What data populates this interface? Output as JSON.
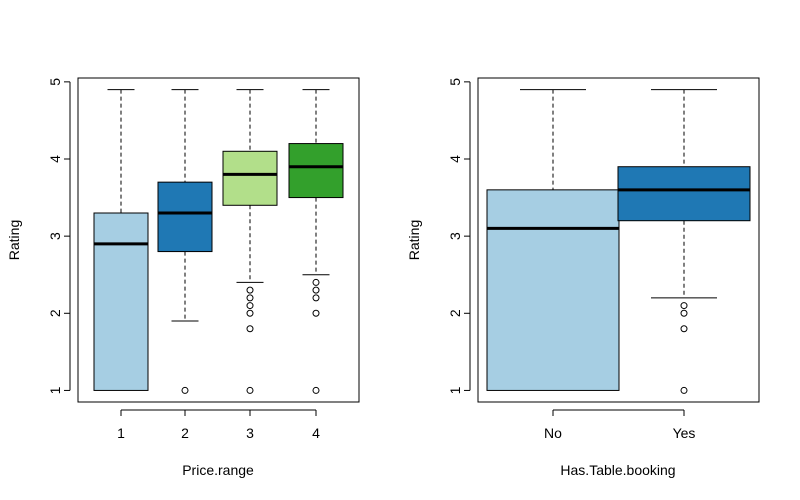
{
  "chart_data": [
    {
      "type": "box",
      "xlabel": "Price.range",
      "ylabel": "Rating",
      "ylim": [
        0.85,
        5.05
      ],
      "yticks": [
        "1",
        "2",
        "3",
        "4",
        "5"
      ],
      "categories": [
        "1",
        "2",
        "3",
        "4"
      ],
      "boxes": [
        {
          "category": "1",
          "whisker_low": 1.0,
          "q1": 1.0,
          "median": 2.9,
          "q3": 3.3,
          "whisker_high": 4.9,
          "outliers": [],
          "color": "#a6cee3"
        },
        {
          "category": "2",
          "whisker_low": 1.9,
          "q1": 2.8,
          "median": 3.3,
          "q3": 3.7,
          "whisker_high": 4.9,
          "outliers": [
            1.0
          ],
          "color": "#1f78b4"
        },
        {
          "category": "3",
          "whisker_low": 2.4,
          "q1": 3.4,
          "median": 3.8,
          "q3": 4.1,
          "whisker_high": 4.9,
          "outliers": [
            2.3,
            2.2,
            2.1,
            2.0,
            1.8,
            1.0
          ],
          "color": "#b2df8a"
        },
        {
          "category": "4",
          "whisker_low": 2.5,
          "q1": 3.5,
          "median": 3.9,
          "q3": 4.2,
          "whisker_high": 4.9,
          "outliers": [
            2.4,
            2.3,
            2.2,
            2.0,
            1.0
          ],
          "color": "#33a02c"
        }
      ]
    },
    {
      "type": "box",
      "xlabel": "Has.Table.booking",
      "ylabel": "Rating",
      "ylim": [
        0.85,
        5.05
      ],
      "yticks": [
        "1",
        "2",
        "3",
        "4",
        "5"
      ],
      "categories": [
        "No",
        "Yes"
      ],
      "boxes": [
        {
          "category": "No",
          "whisker_low": 1.0,
          "q1": 1.0,
          "median": 3.1,
          "q3": 3.6,
          "whisker_high": 4.9,
          "outliers": [],
          "color": "#a6cee3"
        },
        {
          "category": "Yes",
          "whisker_low": 2.2,
          "q1": 3.2,
          "median": 3.6,
          "q3": 3.9,
          "whisker_high": 4.9,
          "outliers": [
            2.1,
            2.0,
            1.8,
            1.0
          ],
          "color": "#1f78b4"
        }
      ]
    }
  ]
}
